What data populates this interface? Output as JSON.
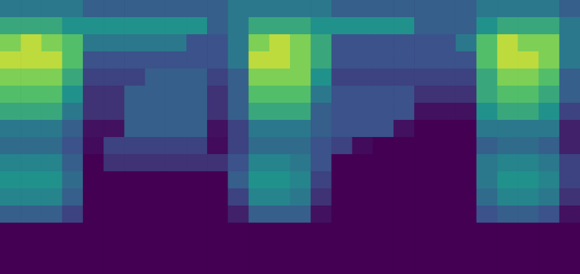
{
  "chart_data": {
    "type": "heatmap",
    "tick_labels": false,
    "color_range": [
      0,
      10
    ],
    "cells": [
      [
        4,
        4,
        4,
        4,
        3,
        3,
        3,
        3,
        3,
        3,
        3,
        4,
        4,
        4,
        4,
        4,
        3,
        3,
        3,
        3,
        3,
        3,
        3,
        4,
        4,
        4,
        4,
        3
      ],
      [
        6,
        6,
        6,
        5,
        5,
        5,
        5,
        5,
        5,
        5,
        3,
        4,
        6,
        6,
        6,
        5,
        5,
        5,
        5,
        5,
        3,
        3,
        3,
        5,
        6,
        6,
        6,
        4
      ],
      [
        8,
        9,
        8,
        7,
        4,
        4,
        4,
        4,
        4,
        2.5,
        2.5,
        4,
        8,
        9,
        8,
        6,
        2.5,
        2.5,
        2.5,
        2.5,
        2.5,
        2.5,
        4,
        7,
        9,
        8,
        8,
        4
      ],
      [
        9,
        9,
        9,
        7,
        2.5,
        2.5,
        2.5,
        2.5,
        2.5,
        2.5,
        2.5,
        4,
        9,
        9,
        8,
        6,
        2.5,
        2.5,
        2.5,
        2.5,
        2.5,
        2.5,
        2.5,
        7,
        9,
        9,
        8,
        4
      ],
      [
        8,
        8,
        8,
        6,
        2,
        2,
        2,
        3,
        3,
        3,
        2,
        3,
        8,
        8,
        8,
        5,
        2,
        2,
        2,
        2,
        2,
        2,
        2,
        6,
        8,
        8,
        7,
        3
      ],
      [
        7,
        7,
        7,
        5,
        1.5,
        1.5,
        3,
        3,
        3,
        3,
        1.5,
        3,
        7,
        7,
        7,
        4,
        2.5,
        2.5,
        2.5,
        2.5,
        1.5,
        1.5,
        1.5,
        6,
        7,
        7,
        6,
        3
      ],
      [
        6,
        6,
        6,
        4,
        1.5,
        1.5,
        3,
        3,
        3,
        3,
        1.5,
        3,
        6,
        6,
        6,
        3,
        2.5,
        2.5,
        2.5,
        2.5,
        0.5,
        0.5,
        0.5,
        5,
        6,
        6,
        5,
        2
      ],
      [
        4,
        4,
        4,
        3,
        0.5,
        0.5,
        3,
        3,
        3,
        3,
        0.5,
        2,
        4,
        4,
        4,
        3,
        2.5,
        2.5,
        2.5,
        0.5,
        0,
        0,
        0,
        4,
        4,
        4,
        4,
        1
      ],
      [
        3.5,
        3.5,
        3.5,
        2.5,
        0.3,
        2,
        2,
        2,
        2,
        2,
        0.3,
        2,
        3.5,
        3.5,
        3.5,
        2.5,
        2,
        0.3,
        0,
        0,
        0,
        0,
        0,
        3,
        3.5,
        3.5,
        3,
        1
      ],
      [
        4.5,
        4.5,
        4.5,
        3,
        0,
        1.5,
        1.5,
        1.5,
        1.5,
        1.5,
        1.5,
        2.5,
        4.5,
        4.5,
        4,
        2.5,
        0,
        0,
        0,
        0,
        0,
        0,
        0,
        4,
        4.5,
        4.5,
        4,
        2
      ],
      [
        5,
        5,
        5,
        3.5,
        0,
        0,
        0,
        0,
        0,
        0,
        0,
        3,
        5,
        5,
        4.5,
        2,
        0,
        0,
        0,
        0,
        0,
        0,
        0,
        4,
        5,
        5,
        4.5,
        2
      ],
      [
        4.5,
        4.5,
        4.5,
        3,
        0,
        0,
        0,
        0,
        0,
        0,
        0,
        2,
        4.5,
        4.5,
        4,
        1.5,
        0,
        0,
        0,
        0,
        0,
        0,
        0,
        3.5,
        4.5,
        4.5,
        4,
        1.5
      ],
      [
        3,
        3,
        3,
        2,
        0,
        0,
        0,
        0,
        0,
        0,
        0,
        1,
        3,
        3,
        3,
        0.5,
        0,
        0,
        0,
        0,
        0,
        0,
        0,
        2.5,
        3,
        3,
        2.5,
        0.5
      ],
      [
        0,
        0,
        0,
        0,
        0,
        0,
        0,
        0,
        0,
        0,
        0,
        0,
        0,
        0,
        0,
        0,
        0,
        0,
        0,
        0,
        0,
        0,
        0,
        0,
        0,
        0,
        0,
        0
      ],
      [
        0,
        0,
        0,
        0,
        0,
        0,
        0,
        0,
        0,
        0,
        0,
        0,
        0,
        0,
        0,
        0,
        0,
        0,
        0,
        0,
        0,
        0,
        0,
        0,
        0,
        0,
        0,
        0
      ],
      [
        0,
        0,
        0,
        0,
        0,
        0,
        0,
        0,
        0,
        0,
        0,
        0,
        0,
        0,
        0,
        0,
        0,
        0,
        0,
        0,
        0,
        0,
        0,
        0,
        0,
        0,
        0,
        0
      ]
    ]
  }
}
